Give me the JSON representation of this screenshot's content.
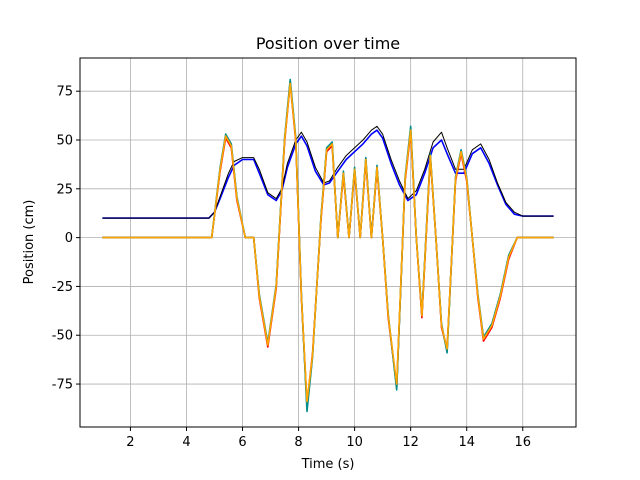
{
  "chart_data": {
    "type": "line",
    "title": "Position over time",
    "xlabel": "Time (s)",
    "ylabel": "Position (cm)",
    "xlim": [
      0.2,
      17.9
    ],
    "ylim": [
      -97,
      92
    ],
    "xticks": [
      2,
      4,
      6,
      8,
      10,
      12,
      14,
      16
    ],
    "yticks": [
      -75,
      -50,
      -25,
      0,
      25,
      50,
      75
    ],
    "grid": true,
    "legend": "none",
    "series": [
      {
        "color": "#0000ff",
        "x": [
          1.0,
          4.8,
          5.0,
          5.2,
          5.5,
          5.7,
          6.0,
          6.4,
          6.6,
          6.9,
          7.2,
          7.4,
          7.6,
          7.9,
          8.1,
          8.3,
          8.6,
          8.9,
          9.1,
          9.4,
          9.7,
          10.0,
          10.3,
          10.6,
          10.8,
          11.0,
          11.3,
          11.6,
          11.9,
          12.2,
          12.5,
          12.8,
          13.1,
          13.3,
          13.6,
          13.9,
          14.2,
          14.5,
          14.8,
          15.1,
          15.4,
          15.7,
          16.0,
          16.3,
          16.6,
          17.1
        ],
        "y": [
          10,
          10,
          13,
          20,
          31,
          37,
          40,
          40,
          33,
          22,
          19,
          24,
          36,
          48,
          52,
          47,
          34,
          27,
          28,
          34,
          40,
          44,
          48,
          53,
          55,
          51,
          38,
          27,
          19,
          22,
          33,
          46,
          50,
          43,
          33,
          33,
          43,
          46,
          38,
          27,
          17,
          12,
          11,
          11,
          11,
          11
        ]
      },
      {
        "color": "#000000",
        "x": [
          1.0,
          4.8,
          5.0,
          5.2,
          5.5,
          5.7,
          6.0,
          6.4,
          6.6,
          6.9,
          7.2,
          7.4,
          7.6,
          7.9,
          8.1,
          8.3,
          8.6,
          8.9,
          9.1,
          9.4,
          9.7,
          10.0,
          10.3,
          10.6,
          10.8,
          11.0,
          11.3,
          11.6,
          11.9,
          12.2,
          12.5,
          12.8,
          13.1,
          13.3,
          13.6,
          13.9,
          14.2,
          14.5,
          14.8,
          15.1,
          15.4,
          15.7,
          16.0,
          16.3,
          16.6,
          17.1
        ],
        "y": [
          10,
          10,
          13,
          21,
          33,
          39,
          41,
          41,
          35,
          23,
          20,
          25,
          38,
          50,
          54,
          49,
          36,
          28,
          29,
          36,
          42,
          46,
          50,
          55,
          57,
          53,
          40,
          29,
          20,
          24,
          35,
          49,
          54,
          46,
          35,
          35,
          45,
          48,
          40,
          28,
          18,
          13,
          11,
          11,
          11,
          11
        ]
      },
      {
        "color": "#008000",
        "x": [
          1.0,
          4.9,
          5.2,
          5.4,
          5.6,
          5.8,
          6.1,
          6.4,
          6.6,
          6.9,
          7.2,
          7.5,
          7.7,
          7.9,
          8.1,
          8.3,
          8.5,
          8.8,
          9.0,
          9.2,
          9.4,
          9.6,
          9.8,
          10.0,
          10.2,
          10.4,
          10.6,
          10.8,
          11.0,
          11.2,
          11.5,
          11.8,
          12.0,
          12.2,
          12.4,
          12.7,
          12.9,
          13.1,
          13.3,
          13.6,
          13.8,
          14.0,
          14.2,
          14.4,
          14.6,
          14.9,
          15.2,
          15.5,
          15.8,
          17.1
        ],
        "y": [
          0,
          0,
          35,
          52,
          47,
          20,
          0,
          0,
          -30,
          -55,
          -25,
          50,
          80,
          50,
          -30,
          -87,
          -60,
          10,
          45,
          48,
          0,
          33,
          0,
          35,
          0,
          40,
          0,
          36,
          0,
          -40,
          -77,
          30,
          55,
          0,
          -40,
          42,
          0,
          -45,
          -58,
          30,
          44,
          30,
          0,
          -30,
          -52,
          -45,
          -30,
          -10,
          0,
          0
        ]
      },
      {
        "color": "#ff0000",
        "x": [
          1.0,
          4.9,
          5.2,
          5.4,
          5.6,
          5.8,
          6.1,
          6.4,
          6.6,
          6.9,
          7.2,
          7.5,
          7.7,
          7.9,
          8.1,
          8.3,
          8.5,
          8.8,
          9.0,
          9.2,
          9.4,
          9.6,
          9.8,
          10.0,
          10.2,
          10.4,
          10.6,
          10.8,
          11.0,
          11.2,
          11.5,
          11.8,
          12.0,
          12.2,
          12.4,
          12.7,
          12.9,
          13.1,
          13.3,
          13.6,
          13.8,
          14.0,
          14.2,
          14.4,
          14.6,
          14.9,
          15.2,
          15.5,
          15.8,
          17.1
        ],
        "y": [
          0,
          0,
          34,
          51,
          46,
          19,
          0,
          0,
          -31,
          -56,
          -26,
          49,
          79,
          49,
          -31,
          -85,
          -59,
          9,
          44,
          47,
          0,
          32,
          0,
          34,
          0,
          39,
          0,
          35,
          0,
          -41,
          -76,
          29,
          54,
          0,
          -41,
          41,
          0,
          -46,
          -57,
          29,
          43,
          29,
          0,
          -31,
          -53,
          -46,
          -31,
          -11,
          0,
          0
        ]
      },
      {
        "color": "#008b8b",
        "x": [
          1.0,
          4.9,
          5.2,
          5.4,
          5.6,
          5.8,
          6.1,
          6.4,
          6.6,
          6.9,
          7.2,
          7.5,
          7.7,
          7.9,
          8.1,
          8.3,
          8.5,
          8.8,
          9.0,
          9.2,
          9.4,
          9.6,
          9.8,
          10.0,
          10.2,
          10.4,
          10.6,
          10.8,
          11.0,
          11.2,
          11.5,
          11.8,
          12.0,
          12.2,
          12.4,
          12.7,
          12.9,
          13.1,
          13.3,
          13.6,
          13.8,
          14.0,
          14.2,
          14.4,
          14.6,
          14.9,
          15.2,
          15.5,
          15.8,
          17.1
        ],
        "y": [
          0,
          0,
          36,
          53,
          48,
          21,
          0,
          0,
          -29,
          -54,
          -24,
          51,
          81,
          51,
          -29,
          -89,
          -61,
          11,
          46,
          49,
          0,
          34,
          0,
          36,
          0,
          41,
          0,
          37,
          0,
          -39,
          -78,
          31,
          57,
          0,
          -39,
          43,
          0,
          -44,
          -59,
          31,
          45,
          31,
          0,
          -29,
          -51,
          -44,
          -29,
          -9,
          0,
          0
        ]
      },
      {
        "color": "#ffa500",
        "x": [
          1.0,
          4.9,
          5.2,
          5.4,
          5.6,
          5.8,
          6.1,
          6.4,
          6.6,
          6.9,
          7.2,
          7.5,
          7.7,
          7.9,
          8.1,
          8.3,
          8.5,
          8.8,
          9.0,
          9.2,
          9.4,
          9.6,
          9.8,
          10.0,
          10.2,
          10.4,
          10.6,
          10.8,
          11.0,
          11.2,
          11.5,
          11.8,
          12.0,
          12.2,
          12.4,
          12.7,
          12.9,
          13.1,
          13.3,
          13.6,
          13.8,
          14.0,
          14.2,
          14.4,
          14.6,
          14.9,
          15.2,
          15.5,
          15.8,
          17.1
        ],
        "y": [
          0,
          0,
          35,
          52,
          47,
          20,
          0,
          0,
          -30,
          -55,
          -25,
          50,
          79,
          50,
          -30,
          -84,
          -60,
          10,
          45,
          48,
          0,
          33,
          0,
          35,
          0,
          40,
          0,
          36,
          0,
          -40,
          -75,
          30,
          55,
          0,
          -40,
          42,
          0,
          -45,
          -57,
          30,
          44,
          30,
          0,
          -30,
          -52,
          -45,
          -30,
          -10,
          0,
          0
        ]
      }
    ]
  }
}
